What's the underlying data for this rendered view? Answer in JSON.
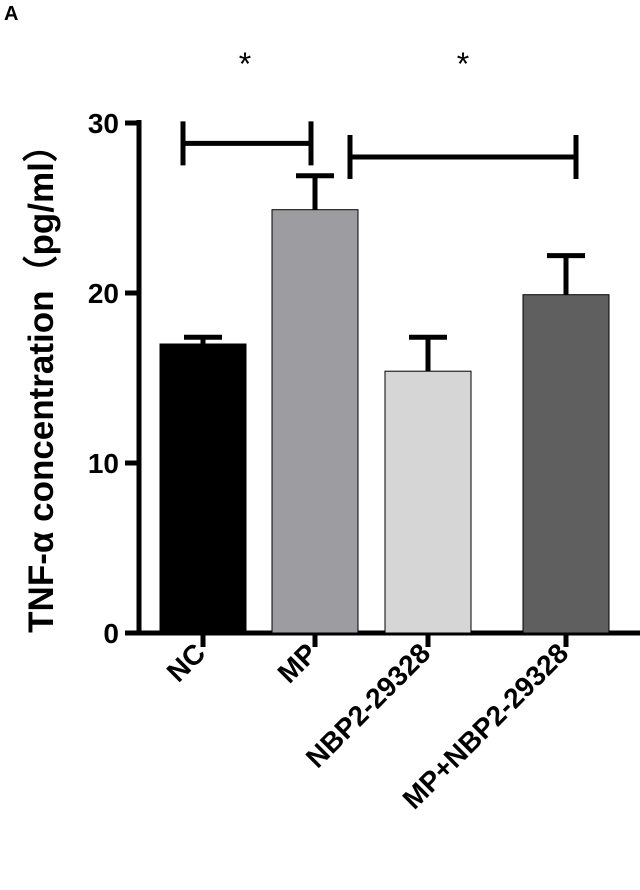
{
  "panel_label": "A",
  "chart_data": {
    "type": "bar",
    "title": "",
    "xlabel": "",
    "ylabel": "TNF-α concentration（pg/ml）",
    "ylim": [
      0,
      30
    ],
    "yticks": [
      0,
      10,
      20,
      30
    ],
    "categories": [
      "NC",
      "MP",
      "NBP2-29328",
      "MP+NBP2-29328"
    ],
    "values": [
      17.0,
      24.9,
      15.4,
      19.9
    ],
    "errors": [
      0.4,
      2.0,
      2.0,
      2.3
    ],
    "colors": [
      "#000000",
      "#9d9da1",
      "#d6d6d6",
      "#5f5f5f"
    ],
    "significance": [
      {
        "between": [
          "NC",
          "MP"
        ],
        "label": "*",
        "level": 28.8
      },
      {
        "between": [
          "MP",
          "MP+NBP2-29328"
        ],
        "label": "*",
        "level": 28.0
      }
    ],
    "grid": false,
    "legend": "none"
  }
}
